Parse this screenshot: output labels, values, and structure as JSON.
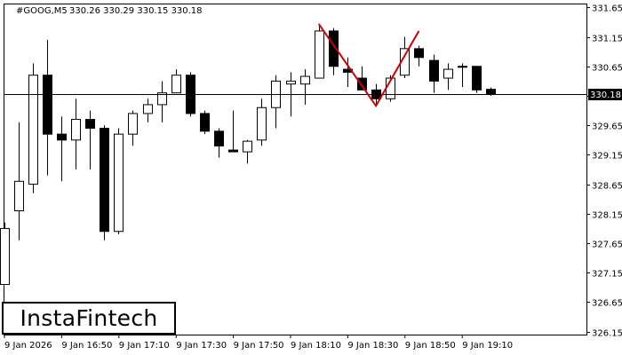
{
  "header": {
    "symbol": "#GOOG,M5",
    "ohlc": "330.26 330.29 330.15 330.18"
  },
  "brand": {
    "name": "InstaFintech"
  },
  "chart_data": {
    "type": "candlestick",
    "ylim": [
      326.1,
      331.7
    ],
    "y_ticks": [
      "331.65",
      "331.15",
      "330.65",
      "330.15",
      "329.65",
      "329.15",
      "328.65",
      "328.15",
      "327.65",
      "327.15",
      "326.65",
      "326.15"
    ],
    "x_ticks": [
      "9 Jan 2026",
      "9 Jan 16:50",
      "9 Jan 17:10",
      "9 Jan 17:30",
      "9 Jan 17:50",
      "9 Jan 18:10",
      "9 Jan 18:30",
      "9 Jan 18:50",
      "9 Jan 19:10"
    ],
    "current_price": "330.18",
    "colors": {
      "bull": "#ffffff",
      "bear": "#000000",
      "pattern": "#cc0000",
      "price_line": "#000000"
    },
    "candles": [
      {
        "o": 326.95,
        "h": 328.0,
        "l": 326.95,
        "c": 327.9
      },
      {
        "o": 328.2,
        "h": 329.7,
        "l": 327.7,
        "c": 328.7
      },
      {
        "o": 328.65,
        "h": 330.7,
        "l": 328.5,
        "c": 330.5
      },
      {
        "o": 330.5,
        "h": 331.1,
        "l": 328.8,
        "c": 329.5
      },
      {
        "o": 329.5,
        "h": 329.8,
        "l": 328.7,
        "c": 329.4
      },
      {
        "o": 329.4,
        "h": 330.1,
        "l": 328.9,
        "c": 329.75
      },
      {
        "o": 329.75,
        "h": 329.9,
        "l": 328.9,
        "c": 329.6
      },
      {
        "o": 329.6,
        "h": 329.65,
        "l": 327.7,
        "c": 327.85
      },
      {
        "o": 327.85,
        "h": 329.6,
        "l": 327.8,
        "c": 329.5
      },
      {
        "o": 329.5,
        "h": 329.9,
        "l": 329.3,
        "c": 329.85
      },
      {
        "o": 329.85,
        "h": 330.1,
        "l": 329.7,
        "c": 330.0
      },
      {
        "o": 330.0,
        "h": 330.4,
        "l": 329.7,
        "c": 330.2
      },
      {
        "o": 330.2,
        "h": 330.6,
        "l": 330.2,
        "c": 330.5
      },
      {
        "o": 330.5,
        "h": 330.55,
        "l": 329.8,
        "c": 329.85
      },
      {
        "o": 329.85,
        "h": 329.9,
        "l": 329.5,
        "c": 329.55
      },
      {
        "o": 329.55,
        "h": 329.6,
        "l": 329.1,
        "c": 329.3
      },
      {
        "o": 329.23,
        "h": 329.9,
        "l": 329.2,
        "c": 329.2
      },
      {
        "o": 329.2,
        "h": 329.4,
        "l": 329.0,
        "c": 329.38
      },
      {
        "o": 329.4,
        "h": 330.1,
        "l": 329.3,
        "c": 329.95
      },
      {
        "o": 329.95,
        "h": 330.5,
        "l": 329.6,
        "c": 330.4
      },
      {
        "o": 330.35,
        "h": 330.55,
        "l": 329.8,
        "c": 330.4
      },
      {
        "o": 330.35,
        "h": 330.6,
        "l": 330.0,
        "c": 330.48
      },
      {
        "o": 330.45,
        "h": 331.35,
        "l": 330.45,
        "c": 331.25
      },
      {
        "o": 331.25,
        "h": 331.3,
        "l": 330.5,
        "c": 330.65
      },
      {
        "o": 330.6,
        "h": 330.8,
        "l": 330.3,
        "c": 330.55
      },
      {
        "o": 330.45,
        "h": 330.65,
        "l": 330.25,
        "c": 330.25
      },
      {
        "o": 330.25,
        "h": 330.35,
        "l": 330.0,
        "c": 330.1
      },
      {
        "o": 330.1,
        "h": 330.5,
        "l": 330.05,
        "c": 330.45
      },
      {
        "o": 330.5,
        "h": 331.15,
        "l": 330.45,
        "c": 330.95
      },
      {
        "o": 330.95,
        "h": 331.0,
        "l": 330.65,
        "c": 330.8
      },
      {
        "o": 330.75,
        "h": 330.85,
        "l": 330.2,
        "c": 330.4
      },
      {
        "o": 330.45,
        "h": 330.7,
        "l": 330.25,
        "c": 330.6
      },
      {
        "o": 330.65,
        "h": 330.7,
        "l": 330.3,
        "c": 330.65
      },
      {
        "o": 330.65,
        "h": 330.65,
        "l": 330.2,
        "c": 330.25
      },
      {
        "o": 330.26,
        "h": 330.29,
        "l": 330.15,
        "c": 330.18
      }
    ],
    "pattern_points": [
      {
        "candle": 22,
        "price": 331.37
      },
      {
        "candle": 26,
        "price": 329.98
      },
      {
        "candle": 29,
        "price": 331.25
      }
    ]
  }
}
